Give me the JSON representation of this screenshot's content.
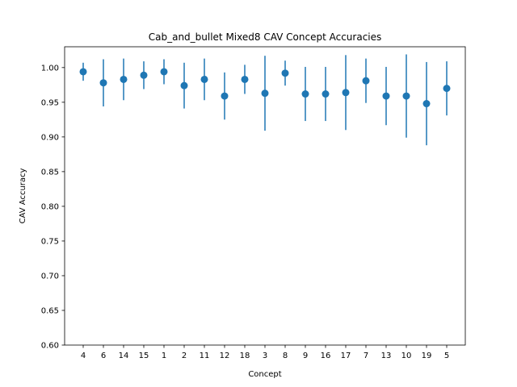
{
  "chart_data": {
    "type": "scatter",
    "title": "Cab_and_bullet Mixed8 CAV Concept Accuracies",
    "xlabel": "Concept",
    "ylabel": "CAV Accuracy",
    "categories": [
      "4",
      "6",
      "14",
      "15",
      "1",
      "2",
      "11",
      "12",
      "18",
      "3",
      "8",
      "9",
      "16",
      "17",
      "7",
      "13",
      "10",
      "19",
      "5"
    ],
    "values": [
      0.994,
      0.978,
      0.983,
      0.989,
      0.994,
      0.974,
      0.983,
      0.959,
      0.983,
      0.963,
      0.992,
      0.962,
      0.962,
      0.964,
      0.981,
      0.959,
      0.959,
      0.948,
      0.97
    ],
    "errors": [
      0.013,
      0.034,
      0.03,
      0.02,
      0.018,
      0.033,
      0.03,
      0.034,
      0.021,
      0.054,
      0.018,
      0.039,
      0.039,
      0.054,
      0.032,
      0.042,
      0.06,
      0.06,
      0.039
    ],
    "ylim": [
      0.6,
      1.03
    ],
    "yticks": [
      "0.60",
      "0.65",
      "0.70",
      "0.75",
      "0.80",
      "0.85",
      "0.90",
      "0.95",
      "1.00"
    ],
    "grid": false,
    "colors": {
      "marker": "#1f77b4",
      "axis": "#000000",
      "background": "#ffffff"
    }
  }
}
